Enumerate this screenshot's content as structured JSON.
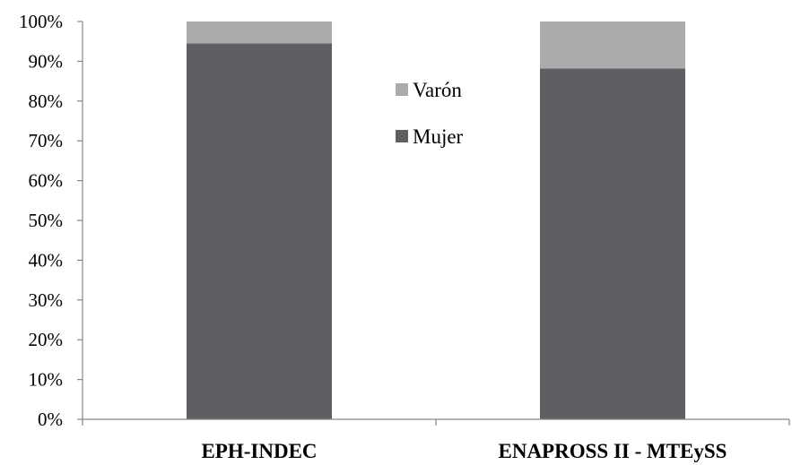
{
  "chart_data": {
    "type": "bar",
    "stacked": true,
    "percent_stacked": true,
    "categories": [
      "EPH-INDEC",
      "ENAPROSS II - MTEySS"
    ],
    "series": [
      {
        "name": "Mujer",
        "values": [
          94.5,
          88.2
        ],
        "color": "#5f5f63"
      },
      {
        "name": "Varón",
        "values": [
          5.5,
          11.8
        ],
        "color": "#ababad"
      }
    ],
    "yticks": [
      "0%",
      "10%",
      "20%",
      "30%",
      "40%",
      "50%",
      "60%",
      "70%",
      "80%",
      "90%",
      "100%"
    ],
    "ylim": [
      0,
      100
    ],
    "legend": {
      "position": "inside-center",
      "order": [
        "Varón",
        "Mujer"
      ]
    },
    "grid": false,
    "axis_color": "#868686"
  }
}
